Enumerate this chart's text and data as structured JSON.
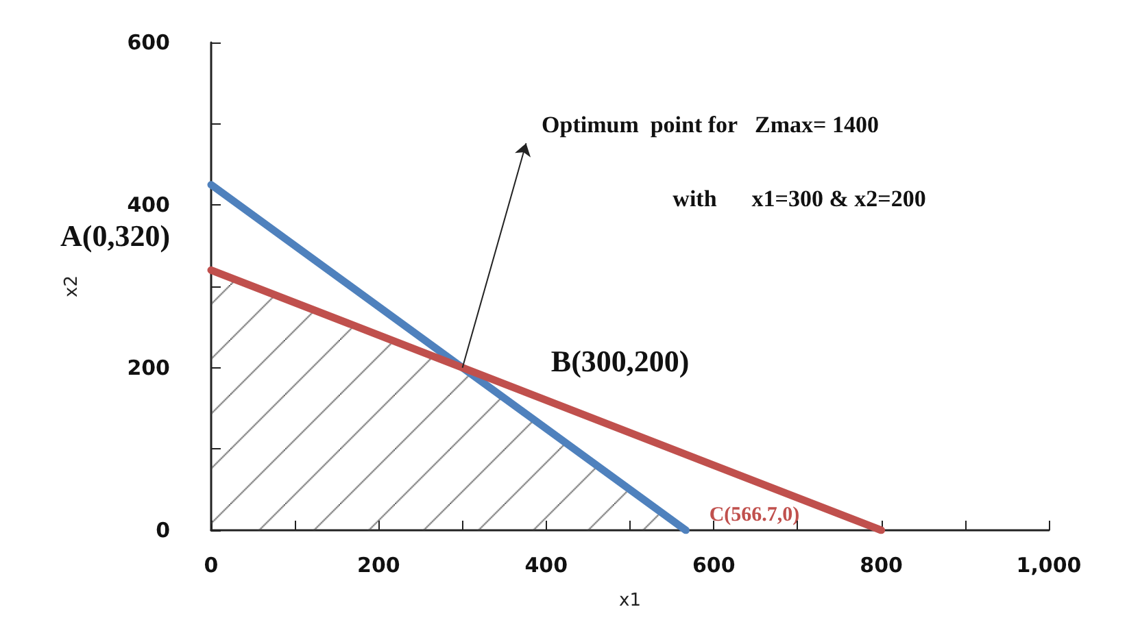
{
  "chart_data": {
    "type": "line",
    "xlabel": "x1",
    "ylabel": "x2",
    "series": [
      {
        "type": "area",
        "color": "#404040",
        "x": [
          0,
          300,
          566.7
        ],
        "values": [
          320,
          200,
          0
        ]
      },
      {
        "color": "#4f81bd",
        "x": [
          0,
          566.7
        ],
        "values": [
          425,
          0
        ]
      },
      {
        "color": "#c0504d",
        "x": [
          0,
          800
        ],
        "values": [
          320,
          0
        ]
      }
    ],
    "xlim": [
      0,
      1000
    ],
    "ylim": [
      0,
      600
    ],
    "xticks": [
      0,
      {
        "value": 100,
        "label": null
      },
      200,
      {
        "value": 300,
        "label": null
      },
      400,
      {
        "value": 500,
        "label": null
      },
      600,
      {
        "value": 700,
        "label": null
      },
      800,
      {
        "value": 900,
        "label": null
      },
      {
        "value": 1000,
        "label": "1,000"
      }
    ],
    "yticks": [
      0,
      {
        "value": 100,
        "label": null
      },
      200,
      {
        "value": 300,
        "label": null
      },
      400,
      {
        "value": 500,
        "label": null
      },
      600
    ],
    "annotations": [
      "Optimum  point for   Zmax= 1400",
      "with      x1=300 & x2=200",
      {
        "text": "A(0,320)",
        "x": 0,
        "y": 320
      },
      {
        "text": "B(300,200)",
        "x": 300,
        "y": 200
      },
      {
        "text": "C(566.7,0)",
        "x": 566.7,
        "y": 0
      }
    ],
    "grid": false,
    "marker": "none",
    "line_style": "solid"
  }
}
